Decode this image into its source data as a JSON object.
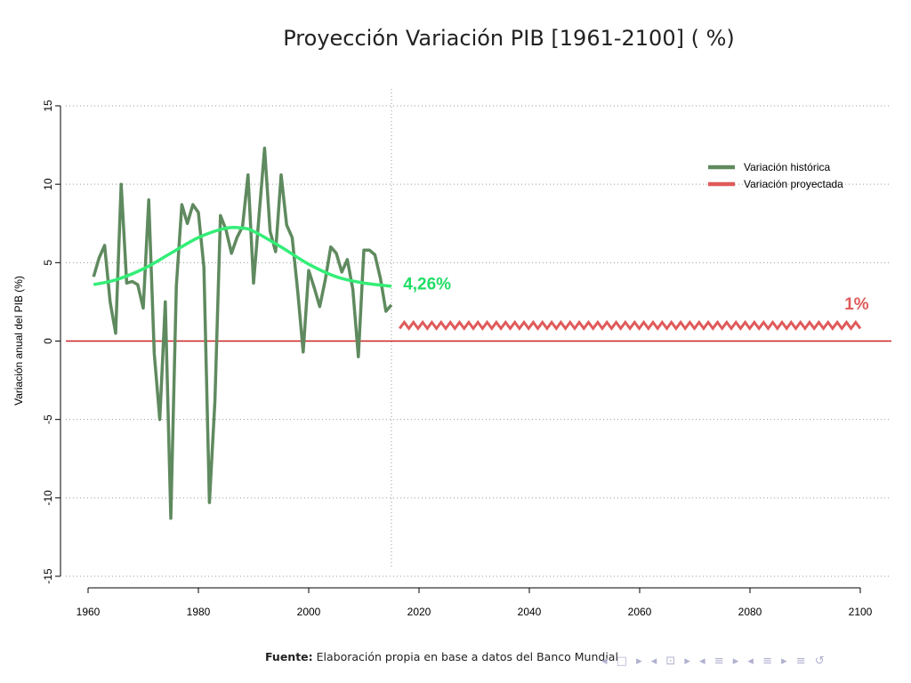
{
  "chart_data": {
    "type": "line",
    "title": "Proyección Variación PIB [1961-2100] ( %)",
    "xlabel": "",
    "ylabel": "Variación anual del PIB (%)",
    "xlim": [
      1960,
      2100
    ],
    "ylim": [
      -15,
      15
    ],
    "x_ticks": [
      "1960",
      "1980",
      "2000",
      "2020",
      "2040",
      "2060",
      "2080",
      "2100"
    ],
    "y_ticks": [
      "-15",
      "-10",
      "-5",
      "0",
      "5",
      "10",
      "15"
    ],
    "grid": true,
    "legend_position": "top-right",
    "legend": [
      "Variación histórica",
      "Variación proyectada"
    ],
    "series": [
      {
        "name": "Variación histórica",
        "color": "#5f8a5f",
        "x": [
          1961,
          1962,
          1963,
          1964,
          1965,
          1966,
          1967,
          1968,
          1969,
          1970,
          1971,
          1972,
          1973,
          1974,
          1975,
          1976,
          1977,
          1978,
          1979,
          1980,
          1981,
          1982,
          1983,
          1984,
          1985,
          1986,
          1987,
          1988,
          1989,
          1990,
          1991,
          1992,
          1993,
          1994,
          1995,
          1996,
          1997,
          1998,
          1999,
          2000,
          2001,
          2002,
          2003,
          2004,
          2005,
          2006,
          2007,
          2008,
          2009,
          2010,
          2011,
          2012,
          2013,
          2014,
          2015
        ],
        "y": [
          4.1,
          5.3,
          6.1,
          2.5,
          0.5,
          10.0,
          3.7,
          3.8,
          3.6,
          2.1,
          9.0,
          -0.8,
          -5.0,
          2.5,
          -11.3,
          3.5,
          8.7,
          7.5,
          8.7,
          8.2,
          4.7,
          -10.3,
          -3.8,
          8.0,
          7.1,
          5.6,
          6.6,
          7.3,
          10.6,
          3.7,
          8.0,
          12.3,
          7.0,
          5.7,
          10.6,
          7.4,
          6.6,
          3.2,
          -0.7,
          4.5,
          3.4,
          2.2,
          3.9,
          6.0,
          5.6,
          4.4,
          5.2,
          3.3,
          -1.0,
          5.8,
          5.8,
          5.5,
          4.0,
          1.9,
          2.3
        ]
      },
      {
        "name": "Variación proyectada",
        "color": "#e05a5a",
        "x": [
          2016,
          2100
        ],
        "y": [
          1,
          1
        ]
      }
    ],
    "trend": {
      "color": "#33ee77",
      "x": [
        1961,
        1965,
        1970,
        1975,
        1980,
        1985,
        1988,
        1990,
        1995,
        2000,
        2005,
        2010,
        2015
      ],
      "y": [
        3.6,
        3.9,
        4.6,
        5.6,
        6.6,
        7.2,
        7.2,
        7.0,
        6.0,
        4.9,
        4.1,
        3.7,
        3.5
      ]
    },
    "annotations": [
      {
        "text": "4,26%",
        "x": 2016,
        "y": 3.7,
        "color": "#22dd66"
      },
      {
        "text": "1%",
        "x": 2096,
        "y": 2.4,
        "color": "#e05a5a"
      }
    ],
    "zero_line_color": "#cc2222",
    "divider_year": 2015
  },
  "footer": {
    "bold": "Fuente:",
    "text": " Elaboración propia en base a datos del Banco Mundial"
  },
  "nav_symbols": "◂ □ ▸ ◂ ⊡ ▸ ◂ ≡ ▸ ◂ ≡ ▸ ≡ ↺"
}
